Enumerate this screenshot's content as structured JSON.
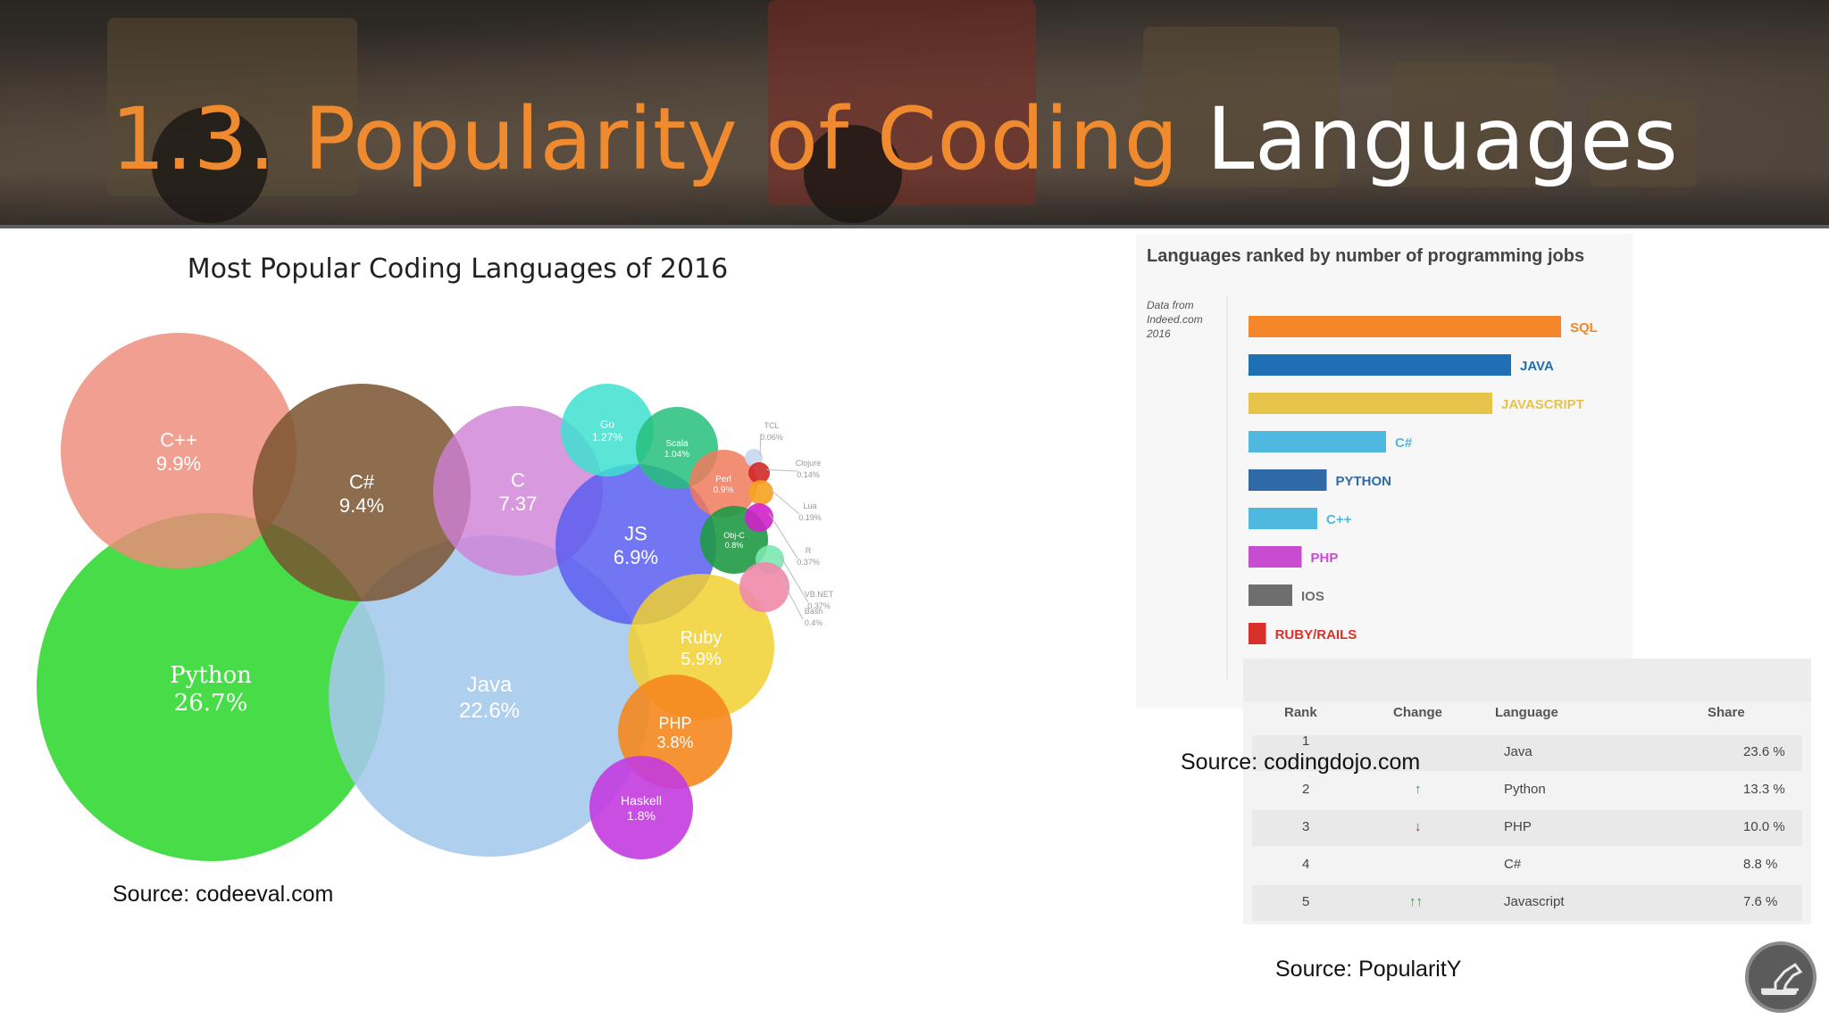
{
  "slide": {
    "title_orange": "1.3. Popularity of Coding",
    "title_white": "Languages"
  },
  "sources": {
    "left": "Source: codeeval.com",
    "jobs": "Source: codingdojo.com",
    "pypl": "Source: PopularitY"
  },
  "chart_data": [
    {
      "type": "bubble",
      "title": "Most Popular Coding Languages of 2016",
      "bubbles": [
        {
          "label": "Python",
          "value": "26.7%",
          "color": "#2fd82f"
        },
        {
          "label": "Java",
          "value": "22.6%",
          "color": "#a4c8ec"
        },
        {
          "label": "C++",
          "value": "9.9%",
          "color": "#ee8a78"
        },
        {
          "label": "C#",
          "value": "9.4%",
          "color": "#7a5330"
        },
        {
          "label": "C",
          "value": "7.37",
          "color": "#d07fd6"
        },
        {
          "label": "JS",
          "value": "6.9%",
          "color": "#5a5ef0"
        },
        {
          "label": "Ruby",
          "value": "5.9%",
          "color": "#f0d030"
        },
        {
          "label": "PHP",
          "value": "3.8%",
          "color": "#f5871f"
        },
        {
          "label": "Haskell",
          "value": "1.8%",
          "color": "#c33ce0"
        },
        {
          "label": "Go",
          "value": "1.27%",
          "color": "#3ee0d0"
        },
        {
          "label": "Scala",
          "value": "1.04%",
          "color": "#26c07a"
        },
        {
          "label": "Perl",
          "value": "0.9%",
          "color": "#f07a5a"
        },
        {
          "label": "Obj-C",
          "value": "0.8%",
          "color": "#1f9a45"
        },
        {
          "label": "TCL",
          "value": "0.06%",
          "color": "#c8d8f0"
        },
        {
          "label": "Clojure",
          "value": "0.14%",
          "color": "#d22828"
        },
        {
          "label": "Lua",
          "value": "0.19%",
          "color": "#f5a21f"
        },
        {
          "label": "R",
          "value": "0.37%",
          "color": "#d020c8"
        },
        {
          "label": "VB.NET",
          "value": "0.37%",
          "color": "#7ae8b0"
        },
        {
          "label": "Bash",
          "value": "0.4%",
          "color": "#f08aaa"
        }
      ]
    },
    {
      "type": "bar",
      "orientation": "horizontal",
      "title": "Languages ranked by number of programming jobs",
      "note": "Data from Indeed.com 2016",
      "categories": [
        "SQL",
        "JAVA",
        "JAVASCRIPT",
        "C#",
        "PYTHON",
        "C++",
        "PHP",
        "IOS",
        "RUBY/RAILS"
      ],
      "values": [
        50000,
        42000,
        39000,
        22000,
        12500,
        11000,
        8500,
        7000,
        2800
      ],
      "colors": [
        "#f5862a",
        "#1f6fb5",
        "#e6c34a",
        "#4fb8df",
        "#2f6aa6",
        "#4fb8df",
        "#c74ccf",
        "#6e6e6e",
        "#d83228"
      ],
      "xticks": [
        "0",
        "10,000",
        "20,000",
        "30,000",
        "40,000",
        "50,000",
        "60,000"
      ],
      "xlim": [
        0,
        60000
      ]
    },
    {
      "type": "table",
      "columns": [
        "Rank",
        "Change",
        "Language",
        "Share"
      ],
      "rows": [
        {
          "rank": "1",
          "change": "",
          "language": "Java",
          "share": "23.6 %"
        },
        {
          "rank": "2",
          "change": "↑",
          "language": "Python",
          "share": "13.3 %"
        },
        {
          "rank": "3",
          "change": "↓",
          "language": "PHP",
          "share": "10.0 %"
        },
        {
          "rank": "4",
          "change": "",
          "language": "C#",
          "share": "8.8 %"
        },
        {
          "rank": "5",
          "change": "↑↑",
          "language": "Javascript",
          "share": "7.6 %"
        }
      ]
    }
  ]
}
